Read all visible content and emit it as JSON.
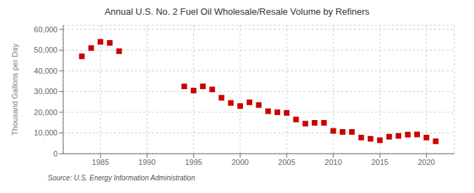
{
  "chart_data": {
    "type": "scatter",
    "title": "Annual U.S. No. 2 Fuel Oil Wholesale/Resale Volume by Refiners",
    "ylabel": "Thousand Gallons per Day",
    "annotations": [
      "Source: U.S. Energy Information Administration"
    ],
    "x": [
      1983,
      1984,
      1985,
      1986,
      1987,
      1994,
      1995,
      1996,
      1997,
      1998,
      1999,
      2000,
      2001,
      2002,
      2003,
      2004,
      2005,
      2006,
      2007,
      2008,
      2009,
      2010,
      2011,
      2012,
      2013,
      2014,
      2015,
      2016,
      2017,
      2018,
      2019,
      2020,
      2021
    ],
    "values": [
      47000,
      51000,
      54000,
      53500,
      49500,
      32500,
      30500,
      32500,
      31000,
      27000,
      24500,
      23000,
      24800,
      23500,
      20500,
      20000,
      19700,
      16500,
      14500,
      14900,
      14900,
      11000,
      10500,
      10500,
      7800,
      7200,
      6500,
      8200,
      8600,
      9200,
      9300,
      7800,
      6000
    ],
    "color": "#cc0000",
    "marker": "square",
    "xlim": [
      1981,
      2023
    ],
    "xticks": [
      1985,
      1990,
      1995,
      2000,
      2005,
      2010,
      2015,
      2020
    ],
    "ylim": [
      0,
      62000
    ],
    "yticks": [
      0,
      {
        "value": 10000,
        "label": "10,000"
      },
      {
        "value": 20000,
        "label": "20,000"
      },
      {
        "value": 30000,
        "label": "30,000"
      },
      {
        "value": 40000,
        "label": "40,000"
      },
      {
        "value": 50000,
        "label": "50,000"
      },
      {
        "value": 60000,
        "label": "60,000"
      }
    ],
    "grid": true
  }
}
